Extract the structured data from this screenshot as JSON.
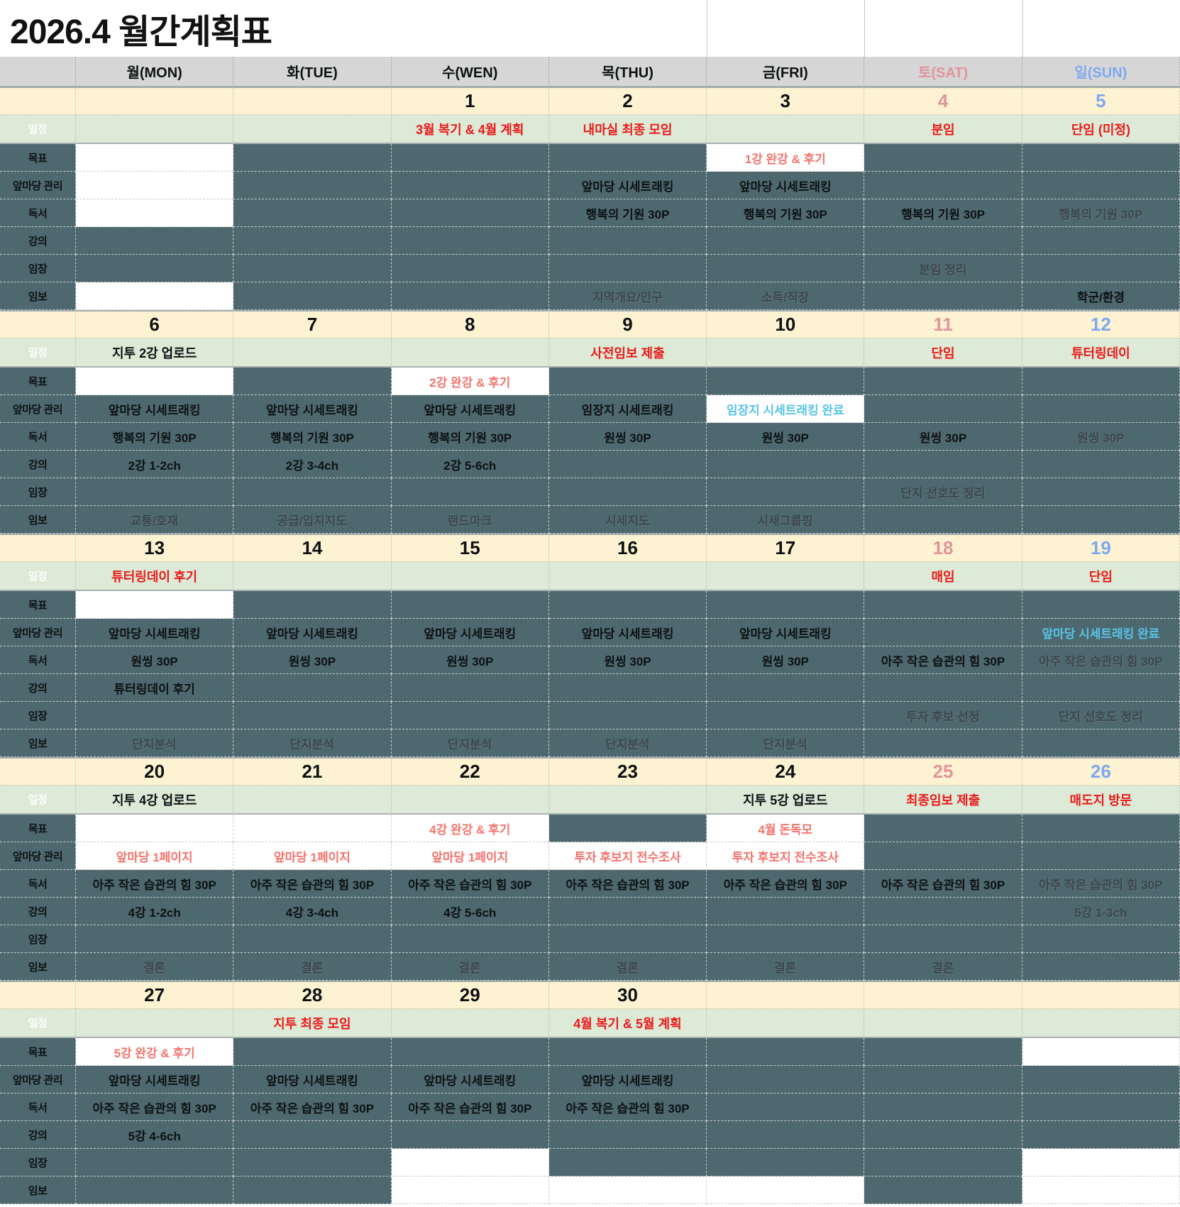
{
  "title": "2026.4 월간계획표",
  "palette": {
    "cell_slate": "#4e686f",
    "date_row_yellow": "#fdf3d2",
    "schedule_row_green": "#dcead7",
    "header_grey": "#d6d6d6",
    "accent_red": "#ea1a1a",
    "accent_salmon": "#f4736c",
    "accent_cyan": "#57c4e6",
    "saturday_pink": "#e2949c",
    "sunday_blue": "#7fa8f0"
  },
  "row_labels": {
    "schedule": "일정",
    "goal": "목표",
    "yard": "앞마당 관리",
    "reading": "독서",
    "lecture": "강의",
    "field": "임장",
    "report": "임보"
  },
  "day_headers": [
    {
      "label": "월(MON)",
      "color": "default"
    },
    {
      "label": "화(TUE)",
      "color": "default"
    },
    {
      "label": "수(WEN)",
      "color": "default"
    },
    {
      "label": "목(THU)",
      "color": "default"
    },
    {
      "label": "금(FRI)",
      "color": "default"
    },
    {
      "label": "토(SAT)",
      "color": "pink"
    },
    {
      "label": "일(SUN)",
      "color": "blue"
    }
  ],
  "weeks": [
    {
      "dates": [
        "",
        "",
        "1",
        "2",
        "3",
        "4",
        "5"
      ],
      "rows": {
        "schedule": [
          null,
          null,
          {
            "t": "3월 복기 & 4월 계획",
            "s": "red"
          },
          {
            "t": "내마실 최종 모임",
            "s": "red"
          },
          null,
          {
            "t": "분임",
            "s": "red"
          },
          {
            "t": "단임 (미정)",
            "s": "red"
          }
        ],
        "goal": [
          {
            "w": true
          },
          null,
          null,
          null,
          {
            "t": "1강 완강 & 후기",
            "s": "salmon",
            "w": true
          },
          null,
          null
        ],
        "yard": [
          {
            "w": true
          },
          null,
          null,
          {
            "t": "앞마당 시세트래킹"
          },
          {
            "t": "앞마당 시세트래킹"
          },
          null,
          null
        ],
        "reading": [
          {
            "w": true
          },
          null,
          null,
          {
            "t": "행복의 기원 30P"
          },
          {
            "t": "행복의 기원 30P"
          },
          {
            "t": "행복의 기원 30P"
          },
          {
            "t": "행복의 기원 30P",
            "s": "faded"
          }
        ],
        "lecture": [
          null,
          null,
          null,
          null,
          null,
          null,
          null
        ],
        "field": [
          null,
          null,
          null,
          null,
          null,
          {
            "t": "분임 정리",
            "s": "faded"
          },
          null
        ],
        "report": [
          {
            "w": true
          },
          null,
          null,
          {
            "t": "지역개요/인구",
            "s": "faded"
          },
          {
            "t": "소득/직장",
            "s": "faded"
          },
          null,
          {
            "t": "학군/환경"
          }
        ]
      }
    },
    {
      "dates": [
        "6",
        "7",
        "8",
        "9",
        "10",
        "11",
        "12"
      ],
      "rows": {
        "schedule": [
          {
            "t": "지투 2강 업로드"
          },
          null,
          null,
          {
            "t": "사전임보 제출",
            "s": "red"
          },
          null,
          {
            "t": "단임",
            "s": "red"
          },
          {
            "t": "튜터링데이",
            "s": "red"
          }
        ],
        "goal": [
          {
            "w": true
          },
          null,
          {
            "t": "2강 완강 & 후기",
            "s": "salmon",
            "w": true
          },
          null,
          null,
          null,
          null
        ],
        "yard": [
          {
            "t": "앞마당 시세트래킹"
          },
          {
            "t": "앞마당 시세트래킹"
          },
          {
            "t": "앞마당 시세트래킹"
          },
          {
            "t": "임장지 시세트래킹"
          },
          {
            "t": "임장지 시세트래킹 완료",
            "s": "cyan",
            "w": true
          },
          null,
          null
        ],
        "reading": [
          {
            "t": "행복의 기원 30P"
          },
          {
            "t": "행복의 기원 30P"
          },
          {
            "t": "행복의 기원 30P"
          },
          {
            "t": "원씽 30P"
          },
          {
            "t": "원씽 30P"
          },
          {
            "t": "원씽 30P"
          },
          {
            "t": "원씽 30P",
            "s": "faded"
          }
        ],
        "lecture": [
          {
            "t": "2강 1-2ch"
          },
          {
            "t": "2강 3-4ch"
          },
          {
            "t": "2강 5-6ch"
          },
          null,
          null,
          null,
          null
        ],
        "field": [
          null,
          null,
          null,
          null,
          null,
          {
            "t": "단지 선호도 정리",
            "s": "faded"
          },
          null
        ],
        "report": [
          {
            "t": "교통/호재",
            "s": "faded"
          },
          {
            "t": "공급/입지지도",
            "s": "faded"
          },
          {
            "t": "랜드마크",
            "s": "faded"
          },
          {
            "t": "시세지도",
            "s": "faded"
          },
          {
            "t": "시세그룹핑",
            "s": "faded"
          },
          null,
          null
        ]
      }
    },
    {
      "dates": [
        "13",
        "14",
        "15",
        "16",
        "17",
        "18",
        "19"
      ],
      "rows": {
        "schedule": [
          {
            "t": "튜터링데이 후기",
            "s": "red"
          },
          null,
          null,
          null,
          null,
          {
            "t": "매임",
            "s": "red"
          },
          {
            "t": "단임",
            "s": "red"
          }
        ],
        "goal": [
          {
            "w": true
          },
          null,
          null,
          null,
          null,
          null,
          null
        ],
        "yard": [
          {
            "t": "앞마당 시세트래킹"
          },
          {
            "t": "앞마당 시세트래킹"
          },
          {
            "t": "앞마당 시세트래킹"
          },
          {
            "t": "앞마당 시세트래킹"
          },
          {
            "t": "앞마당 시세트래킹"
          },
          null,
          {
            "t": "앞마당 시세트래킹 완료",
            "s": "cyan"
          }
        ],
        "reading": [
          {
            "t": "원씽 30P"
          },
          {
            "t": "원씽 30P"
          },
          {
            "t": "원씽 30P"
          },
          {
            "t": "원씽 30P"
          },
          {
            "t": "원씽 30P"
          },
          {
            "t": "아주 작은 습관의 힘 30P"
          },
          {
            "t": "아주 작은 습관의 힘 30P",
            "s": "faded"
          }
        ],
        "lecture": [
          {
            "t": "튜터링데이 후기"
          },
          null,
          null,
          null,
          null,
          null,
          null
        ],
        "field": [
          null,
          null,
          null,
          null,
          null,
          {
            "t": "투자 후보 선정",
            "s": "faded"
          },
          {
            "t": "단지 선호도 정리",
            "s": "faded"
          }
        ],
        "report": [
          {
            "t": "단지분석",
            "s": "faded"
          },
          {
            "t": "단지분석",
            "s": "faded"
          },
          {
            "t": "단지분석",
            "s": "faded"
          },
          {
            "t": "단지분석",
            "s": "faded"
          },
          {
            "t": "단지분석",
            "s": "faded"
          },
          null,
          null
        ]
      }
    },
    {
      "dates": [
        "20",
        "21",
        "22",
        "23",
        "24",
        "25",
        "26"
      ],
      "rows": {
        "schedule": [
          {
            "t": "지투 4강 업로드"
          },
          null,
          null,
          null,
          {
            "t": "지투 5강 업로드"
          },
          {
            "t": "최종임보 제출",
            "s": "red"
          },
          {
            "t": "매도지 방문",
            "s": "red"
          }
        ],
        "goal": [
          {
            "w": true
          },
          {
            "w": true
          },
          {
            "t": "4강 완강 & 후기",
            "s": "salmon",
            "w": true
          },
          null,
          {
            "t": "4월 돈독모",
            "s": "salmon",
            "w": true
          },
          null,
          null
        ],
        "yard": [
          {
            "t": "앞마당 1페이지",
            "s": "salmon",
            "w": true
          },
          {
            "t": "앞마당 1페이지",
            "s": "salmon",
            "w": true
          },
          {
            "t": "앞마당 1페이지",
            "s": "salmon",
            "w": true
          },
          {
            "t": "투자 후보지 전수조사",
            "s": "salmon",
            "w": true
          },
          {
            "t": "투자 후보지 전수조사",
            "s": "salmon",
            "w": true
          },
          null,
          null
        ],
        "reading": [
          {
            "t": "아주 작은 습관의 힘 30P"
          },
          {
            "t": "아주 작은 습관의 힘 30P"
          },
          {
            "t": "아주 작은 습관의 힘 30P"
          },
          {
            "t": "아주 작은 습관의 힘 30P"
          },
          {
            "t": "아주 작은 습관의 힘 30P"
          },
          {
            "t": "아주 작은 습관의 힘 30P"
          },
          {
            "t": "아주 작은 습관의 힘 30P",
            "s": "faded"
          }
        ],
        "lecture": [
          {
            "t": "4강 1-2ch"
          },
          {
            "t": "4강 3-4ch"
          },
          {
            "t": "4강 5-6ch"
          },
          null,
          null,
          null,
          {
            "t": "5강 1-3ch",
            "s": "faded"
          }
        ],
        "field": [
          null,
          null,
          null,
          null,
          null,
          null,
          null
        ],
        "report": [
          {
            "t": "결론",
            "s": "faded"
          },
          {
            "t": "결론",
            "s": "faded"
          },
          {
            "t": "결론",
            "s": "faded"
          },
          {
            "t": "결론",
            "s": "faded"
          },
          {
            "t": "결론",
            "s": "faded"
          },
          {
            "t": "결론",
            "s": "faded"
          },
          null
        ]
      }
    },
    {
      "dates": [
        "27",
        "28",
        "29",
        "30",
        "",
        "",
        ""
      ],
      "rows": {
        "schedule": [
          null,
          {
            "t": "지투 최종 모임",
            "s": "red"
          },
          null,
          {
            "t": "4월 복기 & 5월 계획",
            "s": "red"
          },
          null,
          null,
          null
        ],
        "goal": [
          {
            "t": "5강 완강 & 후기",
            "s": "salmon",
            "w": true
          },
          null,
          null,
          null,
          null,
          null,
          {
            "w": true
          }
        ],
        "yard": [
          {
            "t": "앞마당 시세트래킹"
          },
          {
            "t": "앞마당 시세트래킹"
          },
          {
            "t": "앞마당 시세트래킹"
          },
          {
            "t": "앞마당 시세트래킹"
          },
          null,
          null,
          null
        ],
        "reading": [
          {
            "t": "아주 작은 습관의 힘 30P"
          },
          {
            "t": "아주 작은 습관의 힘 30P"
          },
          {
            "t": "아주 작은 습관의 힘 30P"
          },
          {
            "t": "아주 작은 습관의 힘 30P"
          },
          null,
          null,
          null
        ],
        "lecture": [
          {
            "t": "5강 4-6ch"
          },
          null,
          null,
          null,
          null,
          null,
          null
        ],
        "field": [
          null,
          null,
          {
            "w": true
          },
          null,
          null,
          null,
          {
            "w": true
          }
        ],
        "report": [
          null,
          null,
          {
            "w": true
          },
          {
            "w": true
          },
          {
            "w": true
          },
          null,
          {
            "w": true
          }
        ]
      }
    }
  ]
}
